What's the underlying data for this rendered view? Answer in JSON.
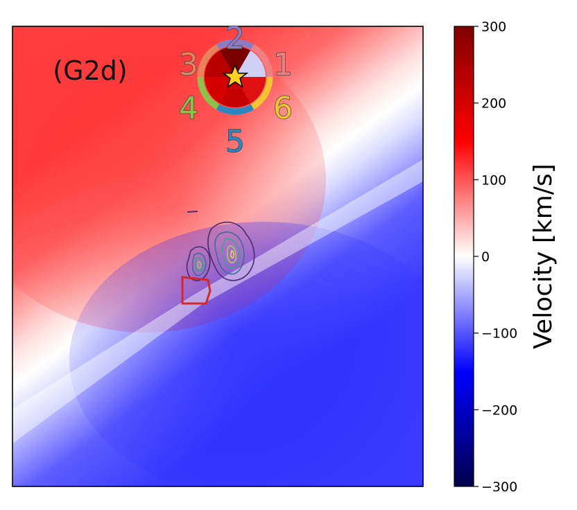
{
  "chart_data": {
    "type": "heatmap",
    "panel_label": "(G2d)",
    "colorbar": {
      "label": "Velocity [km/s]",
      "range": [
        -300,
        300
      ],
      "ticks": [
        300,
        200,
        100,
        0,
        -100,
        -200,
        -300
      ],
      "tick_labels": [
        "300",
        "200",
        "100",
        "0",
        "−100",
        "−200",
        "−300"
      ],
      "colormap": "seismic"
    },
    "velocity_field": {
      "description_values": {
        "upper_left_kms": 170,
        "lower_right_kms": -170
      }
    },
    "sectors": [
      {
        "label": "1",
        "color": "#f08080",
        "velocity_kms": 30
      },
      {
        "label": "2",
        "color": "#8e7cc3",
        "velocity_kms": 260
      },
      {
        "label": "3",
        "color": "#e8825a",
        "velocity_kms": 220
      },
      {
        "label": "4",
        "color": "#8bc34a",
        "velocity_kms": 180
      },
      {
        "label": "5",
        "color": "#2e86c1",
        "velocity_kms": 200
      },
      {
        "label": "6",
        "color": "#f4c430",
        "velocity_kms": 170
      }
    ],
    "contour_colors": [
      "#4a2c6e",
      "#3b6e8f",
      "#3fa08c",
      "#9bd35a",
      "#f0e442"
    ]
  }
}
